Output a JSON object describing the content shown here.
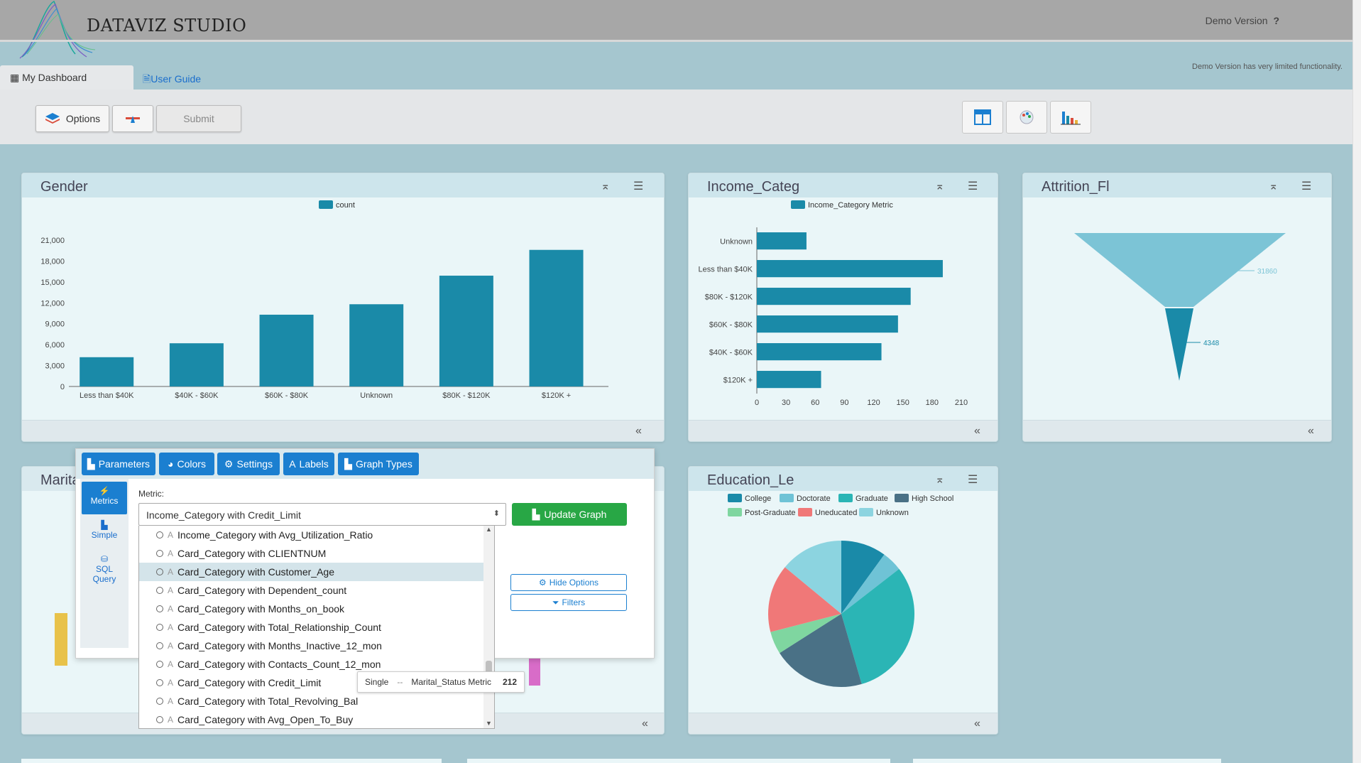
{
  "header": {
    "brand": "DATAVIZ STUDIO",
    "demo_label": "Demo Version",
    "help_glyph": "?"
  },
  "tabs": {
    "dashboard": "My Dashboard",
    "guide": "User Guide"
  },
  "demo_note": "Demo Version has very limited functionality.",
  "toolbar": {
    "options": "Options",
    "submit": "Submit"
  },
  "panels": {
    "gender": {
      "title": "Gender"
    },
    "income": {
      "title": "Income_Categ"
    },
    "attrition": {
      "title": "Attrition_Fl"
    },
    "marital": {
      "title": "Marita"
    },
    "education": {
      "title": "Education_Le"
    }
  },
  "popup": {
    "tabs": [
      "Parameters",
      "Colors",
      "Settings",
      "Labels",
      "Graph Types"
    ],
    "side": {
      "metrics": "Metrics",
      "simple": "Simple",
      "sql_1": "SQL",
      "sql_2": "Query"
    },
    "metric_label": "Metric:",
    "selected": "Income_Category with Credit_Limit",
    "update": "Update Graph",
    "hide_options": "Hide Options",
    "filters": "Filters",
    "options": [
      "Income_Category with Avg_Utilization_Ratio",
      "Card_Category with CLIENTNUM",
      "Card_Category with Customer_Age",
      "Card_Category with Dependent_count",
      "Card_Category with Months_on_book",
      "Card_Category with Total_Relationship_Count",
      "Card_Category with Months_Inactive_12_mon",
      "Card_Category with Contacts_Count_12_mon",
      "Card_Category with Credit_Limit",
      "Card_Category with Total_Revolving_Bal",
      "Card_Category with Avg_Open_To_Buy"
    ]
  },
  "tooltip": {
    "label": "Single",
    "sep": "--",
    "metric": "Marital_Status Metric",
    "value": "212"
  },
  "colors": {
    "bar": "#1a8aa8",
    "accent": "#1b7fd0",
    "green": "#28a745"
  },
  "chart_data": [
    {
      "type": "bar",
      "title": "Gender",
      "legend": "count",
      "categories": [
        "Less than $40K",
        "$40K - $60K",
        "$60K - $80K",
        "Unknown",
        "$80K - $120K",
        "$120K +"
      ],
      "values": [
        4200,
        6200,
        10300,
        11800,
        15900,
        19600
      ],
      "yticks": [
        "0",
        "3,000",
        "6,000",
        "9,000",
        "12,000",
        "15,000",
        "18,000",
        "21,000"
      ],
      "ylim": [
        0,
        21000
      ]
    },
    {
      "type": "bar",
      "orientation": "horizontal",
      "title": "Income_Categ",
      "legend": "Income_Category Metric",
      "categories": [
        "Unknown",
        "Less than $40K",
        "$80K - $120K",
        "$60K - $80K",
        "$40K - $60K",
        "$120K +"
      ],
      "values": [
        51,
        191,
        158,
        145,
        128,
        66
      ],
      "xticks": [
        "0",
        "30",
        "60",
        "90",
        "120",
        "150",
        "180",
        "210"
      ],
      "xlim": [
        0,
        210
      ]
    },
    {
      "type": "funnel",
      "title": "Attrition_Fl",
      "values": [
        31860,
        4348
      ],
      "labels": [
        "31860",
        "4348"
      ]
    },
    {
      "type": "pie",
      "title": "Education_Le",
      "legend": [
        "College",
        "Doctorate",
        "Graduate",
        "High School",
        "Post-Graduate",
        "Uneducated",
        "Unknown"
      ],
      "colors": [
        "#1a8aa8",
        "#6fc3d6",
        "#2bb5b5",
        "#4a7186",
        "#7fd6a0",
        "#f07878",
        "#8cd4e0"
      ],
      "values": [
        10,
        4.5,
        31,
        20.5,
        5,
        15,
        14
      ]
    }
  ]
}
